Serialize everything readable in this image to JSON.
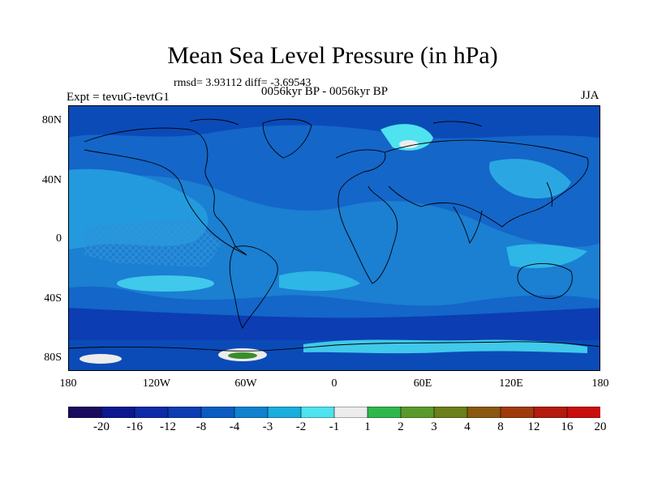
{
  "title": "Mean Sea Level Pressure (in hPa)",
  "stats": "rmsd= 3.93112 diff= -3.69543",
  "left_label": "Expt = tevuG-tevtG1",
  "center_label": "0056kyr BP - 0056kyr BP",
  "right_label": "JJA",
  "lat_ticks": [
    "80N",
    "40N",
    "0",
    "40S",
    "80S"
  ],
  "lon_ticks": [
    "180",
    "120W",
    "60W",
    "0",
    "60E",
    "120E",
    "180"
  ],
  "colorbar": {
    "labels": [
      "-20",
      "-16",
      "-12",
      "-8",
      "-4",
      "-3",
      "-2",
      "-1",
      "1",
      "2",
      "3",
      "4",
      "8",
      "12",
      "16",
      "20"
    ],
    "colors": [
      "#1b0b5e",
      "#0c1790",
      "#0d2aa8",
      "#0c3db2",
      "#0a5cc2",
      "#0e82cf",
      "#19aede",
      "#4fe2ef",
      "#ececec",
      "#2fb84a",
      "#5a9a2d",
      "#6b7f1a",
      "#8a5810",
      "#a03a0c",
      "#b41a0e",
      "#c90e0e"
    ]
  }
}
